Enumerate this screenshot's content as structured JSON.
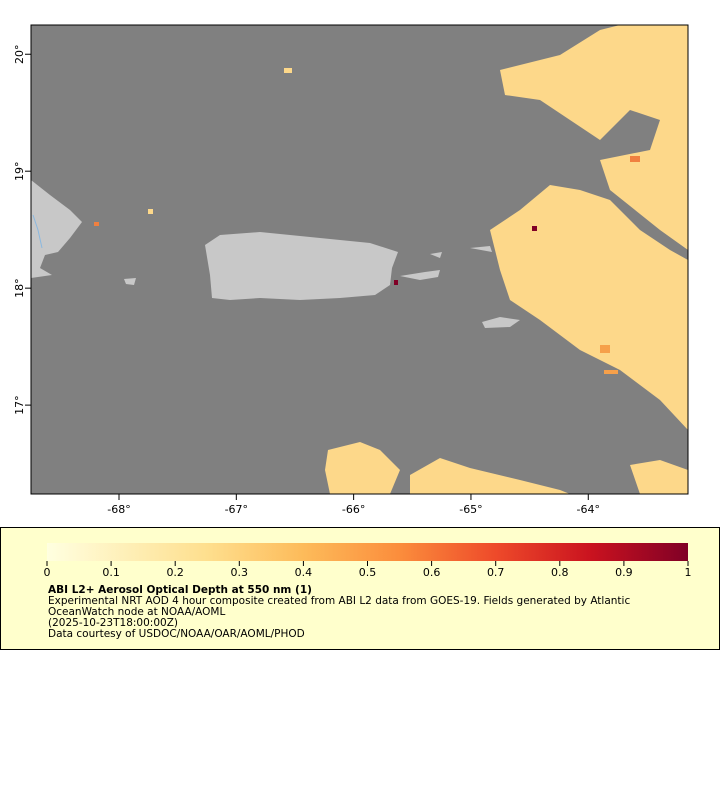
{
  "map": {
    "xlim": [
      -68.75,
      -63.15
    ],
    "ylim": [
      16.24,
      20.25
    ],
    "xticks": [
      {
        "value": -68,
        "label": "-68°"
      },
      {
        "value": -67,
        "label": "-67°"
      },
      {
        "value": -66,
        "label": "-66°"
      },
      {
        "value": -65,
        "label": "-65°"
      },
      {
        "value": -64,
        "label": "-64°"
      }
    ],
    "yticks": [
      {
        "value": 17,
        "label": "17°"
      },
      {
        "value": 18,
        "label": "18°"
      },
      {
        "value": 19,
        "label": "19°"
      },
      {
        "value": 20,
        "label": "20°"
      }
    ]
  },
  "colorbar": {
    "lim": [
      0,
      1
    ],
    "ticks": [
      0,
      0.1,
      0.2,
      0.3,
      0.4,
      0.5,
      0.6,
      0.7,
      0.8,
      0.9,
      1
    ]
  },
  "caption": {
    "title": "ABI L2+ Aerosol Optical Depth at 550 nm (1)",
    "lines": [
      "Experimental NRT AOD 4 hour composite created from ABI L2 data from GOES-19. Fields generated by Atlantic",
      "OceanWatch node at NOAA/AOML",
      "(2025-10-23T18:00:00Z)",
      "Data courtesy of USDOC/NOAA/OAR/AOML/PHOD"
    ]
  }
}
